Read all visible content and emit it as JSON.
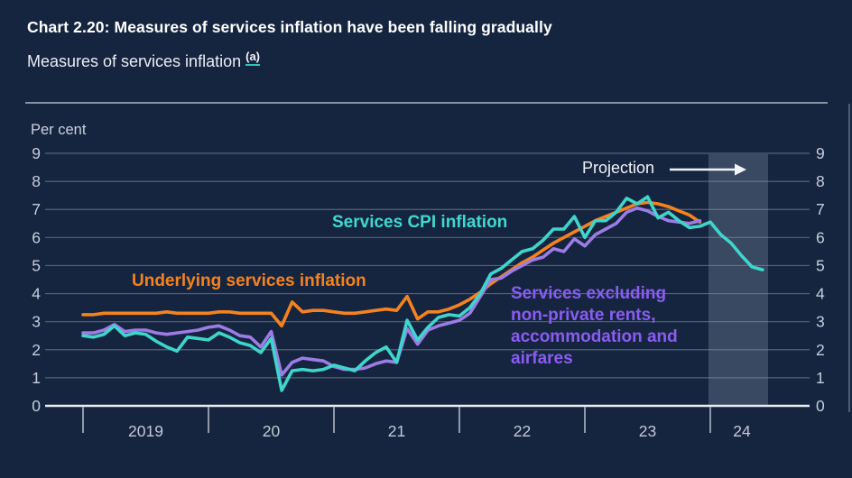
{
  "header": {
    "title": "Chart 2.20: Measures of services inflation have been falling gradually",
    "subtitle_text": "Measures of services inflation",
    "footnote_marker": "(a)"
  },
  "colors": {
    "background": "#152540",
    "footnote_underline": "#2ec4bb",
    "axis_text": "#c6ceda",
    "axis_line": "#e9edf2"
  },
  "chart_data": {
    "type": "line",
    "title": "Measures of services inflation",
    "unit": "Per cent",
    "ylim": [
      0,
      9
    ],
    "yticks": [
      0,
      1,
      2,
      3,
      4,
      5,
      6,
      7,
      8,
      9
    ],
    "grid": "horizontal",
    "x_axis": {
      "start": "2019-01",
      "frequency": "monthly",
      "year_tick_labels": [
        "2019",
        "20",
        "21",
        "22",
        "23",
        "24"
      ]
    },
    "projection": {
      "label": "Projection",
      "start": "2024-01",
      "note": "shaded band at right of chart; Services CPI inflation line extends into band, falling to about 4.9"
    },
    "series": [
      {
        "name": "Underlying services inflation",
        "color": "#f5821e",
        "values": [
          3.25,
          3.25,
          3.3,
          3.3,
          3.3,
          3.3,
          3.3,
          3.3,
          3.35,
          3.3,
          3.3,
          3.3,
          3.3,
          3.35,
          3.35,
          3.3,
          3.3,
          3.3,
          3.3,
          2.85,
          3.7,
          3.35,
          3.4,
          3.4,
          3.35,
          3.3,
          3.3,
          3.35,
          3.4,
          3.45,
          3.4,
          3.9,
          3.1,
          3.35,
          3.35,
          3.45,
          3.6,
          3.8,
          4.05,
          4.35,
          4.6,
          4.85,
          5.1,
          5.3,
          5.55,
          5.8,
          6.0,
          6.2,
          6.4,
          6.6,
          6.75,
          6.9,
          7.05,
          7.2,
          7.25,
          7.2,
          7.1,
          6.95,
          6.8,
          6.55
        ]
      },
      {
        "name": "Services excluding non-private rents, accommodation and airfares",
        "color": "#9c7ce5",
        "values": [
          2.6,
          2.6,
          2.7,
          2.9,
          2.65,
          2.7,
          2.7,
          2.6,
          2.55,
          2.6,
          2.65,
          2.7,
          2.8,
          2.85,
          2.7,
          2.5,
          2.45,
          2.1,
          2.65,
          1.1,
          1.55,
          1.7,
          1.65,
          1.6,
          1.4,
          1.3,
          1.3,
          1.35,
          1.5,
          1.6,
          1.55,
          2.75,
          2.2,
          2.7,
          2.85,
          2.95,
          3.05,
          3.3,
          3.9,
          4.5,
          4.55,
          4.8,
          5.0,
          5.2,
          5.3,
          5.6,
          5.5,
          5.95,
          5.7,
          6.1,
          6.3,
          6.5,
          6.9,
          7.05,
          6.95,
          6.75,
          6.6,
          6.55,
          6.5,
          6.6
        ]
      },
      {
        "name": "Services CPI inflation",
        "color": "#3fd5cb",
        "values": [
          2.5,
          2.45,
          2.55,
          2.85,
          2.5,
          2.6,
          2.55,
          2.3,
          2.1,
          1.95,
          2.45,
          2.4,
          2.35,
          2.6,
          2.45,
          2.25,
          2.15,
          1.9,
          2.4,
          0.55,
          1.25,
          1.3,
          1.25,
          1.3,
          1.45,
          1.35,
          1.25,
          1.6,
          1.9,
          2.1,
          1.55,
          3.05,
          2.35,
          2.8,
          3.15,
          3.25,
          3.2,
          3.5,
          4.0,
          4.7,
          4.9,
          5.2,
          5.5,
          5.6,
          5.9,
          6.3,
          6.3,
          6.75,
          6.0,
          6.6,
          6.6,
          6.9,
          7.4,
          7.2,
          7.45,
          6.7,
          6.9,
          6.6,
          6.35,
          6.4,
          6.55,
          6.1,
          5.8,
          5.35,
          4.95,
          4.85
        ]
      }
    ]
  }
}
